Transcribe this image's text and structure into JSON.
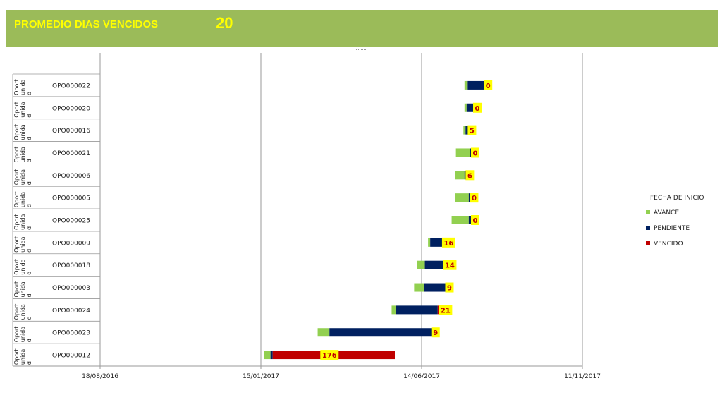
{
  "header": {
    "title": "PROMEDIO DIAS VENCIDOS",
    "value": "20"
  },
  "colors": {
    "banner": "#9bbb59",
    "banner_text": "#ffff00",
    "avance": "#92d050",
    "pendiente": "#002060",
    "vencido": "#c00000",
    "label_bg": "#ffff00"
  },
  "chart_data": {
    "type": "bar",
    "orientation": "horizontal-stacked",
    "group_label": "Oport unida d",
    "categories": [
      "OPO000022",
      "OPO000020",
      "OPO000016",
      "OPO000021",
      "OPO000006",
      "OPO000005",
      "OPO000025",
      "OPO000009",
      "OPO000018",
      "OPO000003",
      "OPO000024",
      "OPO000023",
      "OPO000012"
    ],
    "x_axis": {
      "type": "date",
      "min": "2016-08-18",
      "max": "2017-11-11",
      "ticks": [
        "18/08/2016",
        "15/01/2017",
        "14/06/2017",
        "11/11/2017"
      ],
      "gridlines": true
    },
    "legend": {
      "title": "FECHA DE INICIO",
      "placement": "right",
      "entries": [
        "AVANCE",
        "PENDIENTE",
        "VENCIDO"
      ]
    },
    "series": [
      {
        "name": "FECHA DE INICIO",
        "hidden": true,
        "values": [
          "2017-07-24",
          "2017-07-24",
          "2017-07-23",
          "2017-07-16",
          "2017-07-15",
          "2017-07-15",
          "2017-07-12",
          "2017-06-20",
          "2017-06-10",
          "2017-06-07",
          "2017-05-17",
          "2017-03-09",
          "2017-01-18"
        ]
      },
      {
        "name": "AVANCE",
        "values": [
          3,
          2,
          2,
          13,
          9,
          13,
          16,
          2,
          7,
          9,
          4,
          11,
          6
        ]
      },
      {
        "name": "PENDIENTE",
        "values": [
          17,
          8,
          4,
          3,
          3,
          3,
          4,
          12,
          18,
          22,
          39,
          97,
          2
        ]
      },
      {
        "name": "VENCIDO",
        "values": [
          0,
          0,
          0,
          0,
          0,
          0,
          0,
          1,
          1,
          0,
          3,
          0,
          114
        ]
      }
    ],
    "data_labels": [
      "0",
      "0",
      "5",
      "0",
      "6",
      "0",
      "0",
      "16",
      "14",
      "9",
      "21",
      "9",
      "176"
    ]
  }
}
